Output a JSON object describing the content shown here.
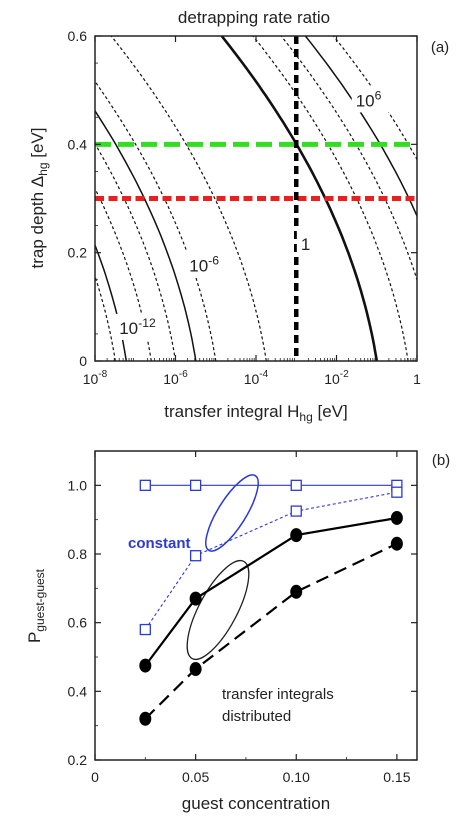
{
  "chart_data": [
    {
      "type": "contour",
      "panel_label": "(a)",
      "title": "detrapping rate ratio",
      "xlabel": "transfer integral H",
      "xlabel_sub": "hg",
      "xlabel_unit": " [eV]",
      "ylabel": "trap depth Δ",
      "ylabel_sub": "hg",
      "ylabel_unit": " [eV]",
      "x_scale": "log",
      "xlim": [
        1e-08,
        1
      ],
      "ylim": [
        0,
        0.6
      ],
      "x_ticks": [
        {
          "value": 1e-08,
          "base": "10",
          "exp": "-8"
        },
        {
          "value": 1e-06,
          "base": "10",
          "exp": "-6"
        },
        {
          "value": 0.0001,
          "base": "10",
          "exp": "-4"
        },
        {
          "value": 0.01,
          "base": "10",
          "exp": "-2"
        },
        {
          "value": 1,
          "base": "1",
          "exp": ""
        }
      ],
      "y_ticks": [
        "0",
        "0.2",
        "0.4",
        "0.6"
      ],
      "y_tick_values": [
        0,
        0.2,
        0.4,
        0.6
      ],
      "contours": [
        {
          "ratio_exp": -14,
          "x_at_y0": 3.2e-08,
          "style": "dashed"
        },
        {
          "ratio_exp": -12,
          "x_at_y0": 6e-08,
          "style": "solid"
        },
        {
          "ratio_exp": -10,
          "x_at_y0": 2.5e-07,
          "style": "dashed"
        },
        {
          "ratio_exp": -8,
          "x_at_y0": 1e-06,
          "style": "dashed"
        },
        {
          "ratio_exp": -6,
          "x_at_y0": 3.2e-06,
          "style": "solid"
        },
        {
          "ratio_exp": -4,
          "x_at_y0": 1e-05,
          "style": "dashed"
        },
        {
          "ratio_exp": -2,
          "x_at_y0": 0.00018,
          "style": "dashed"
        },
        {
          "ratio_exp": 0,
          "x_at_y0": 0.1,
          "style": "bold"
        },
        {
          "ratio_exp": 2,
          "x_at_y0": 0.6,
          "style": "dashed"
        },
        {
          "ratio_exp": 4,
          "x_at_y0": 3.0,
          "style": "dashed"
        },
        {
          "ratio_exp": 6,
          "x_at_y0": 12.0,
          "style": "solid"
        },
        {
          "ratio_exp": 8,
          "x_at_y0": 60.0,
          "style": "dashed"
        }
      ],
      "contour_labels": [
        {
          "base": "10",
          "exp": "-12",
          "x": 4e-08,
          "y": 0.05
        },
        {
          "base": "10",
          "exp": "-6",
          "x": 2.2e-06,
          "y": 0.165
        },
        {
          "base": "1",
          "exp": "",
          "x": 0.0013,
          "y": 0.205
        },
        {
          "base": "10",
          "exp": "6",
          "x": 0.03,
          "y": 0.47
        }
      ],
      "reference_lines": [
        {
          "orientation": "horizontal",
          "value": 0.4,
          "color": "#33dd22",
          "style": "dashed"
        },
        {
          "orientation": "horizontal",
          "value": 0.3,
          "color": "#e82020",
          "style": "dashed"
        },
        {
          "orientation": "vertical",
          "value": 0.001,
          "color": "#000000",
          "style": "dashed"
        }
      ]
    },
    {
      "type": "line",
      "panel_label": "(b)",
      "ylabel": "P",
      "ylabel_sub": "guest-guest",
      "xlabel": "guest concentration",
      "xlim": [
        0,
        0.16
      ],
      "ylim": [
        0.2,
        1.1
      ],
      "x_ticks": [
        "0",
        "0.05",
        "0.10",
        "0.15"
      ],
      "x_tick_values": [
        0,
        0.05,
        0.1,
        0.15
      ],
      "y_ticks": [
        "0.2",
        "0.4",
        "0.6",
        "0.8",
        "1.0"
      ],
      "y_tick_values": [
        0.2,
        0.4,
        0.6,
        0.8,
        1.0
      ],
      "x": [
        0.025,
        0.05,
        0.1,
        0.15
      ],
      "series": [
        {
          "values": [
            1.0,
            1.0,
            1.0,
            1.0
          ],
          "color": "#2b3ad6",
          "marker": "open-square",
          "line": "solid",
          "group": "constant"
        },
        {
          "values": [
            0.58,
            0.795,
            0.925,
            0.98
          ],
          "color": "#2b3ad6",
          "marker": "open-square",
          "line": "dotted",
          "group": "constant"
        },
        {
          "values": [
            0.475,
            0.67,
            0.855,
            0.905
          ],
          "color": "#000000",
          "marker": "filled-circle",
          "line": "solid",
          "group": "distributed"
        },
        {
          "values": [
            0.32,
            0.465,
            0.69,
            0.83
          ],
          "color": "#000000",
          "marker": "filled-circle",
          "line": "dashed",
          "group": "distributed"
        }
      ],
      "annotations": [
        {
          "text": "constant",
          "color": "#2b3ad6"
        },
        {
          "text": "transfer integrals",
          "color": "#222222"
        },
        {
          "text": "distributed",
          "color": "#222222"
        }
      ]
    }
  ]
}
